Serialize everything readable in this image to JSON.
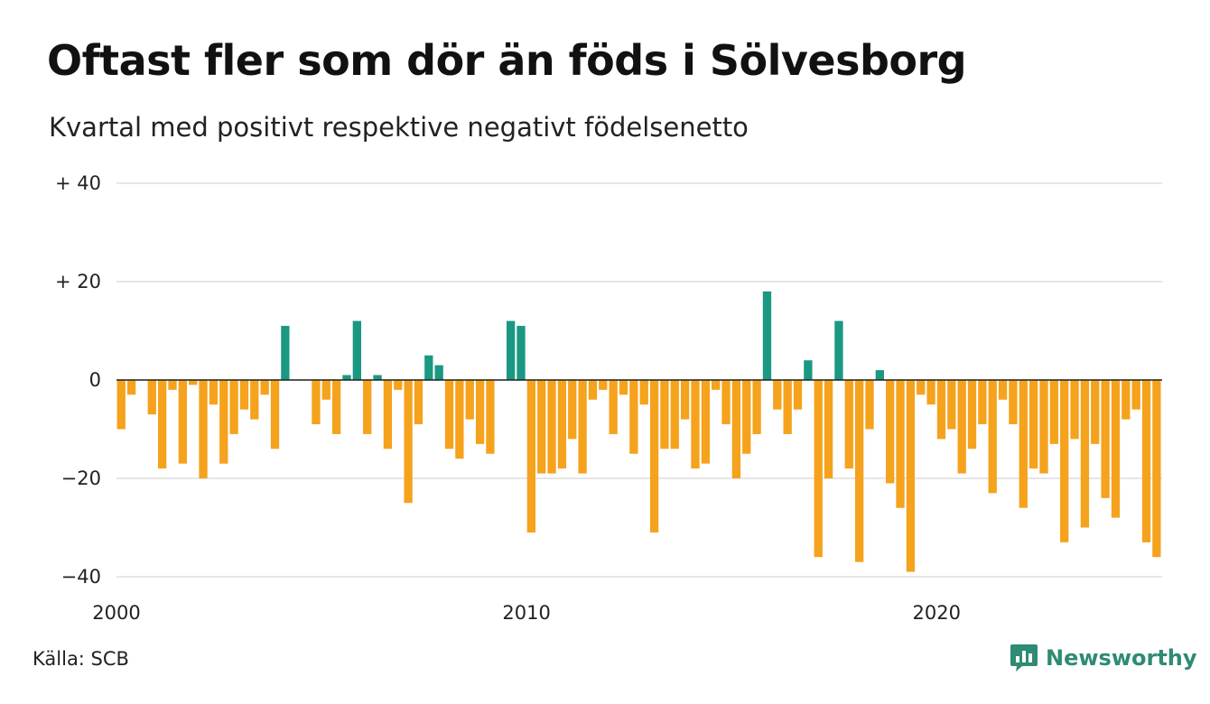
{
  "title": "Oftast fler som dör än föds i Sölvesborg",
  "subtitle": "Kvartal med positivt respektive negativt födelsenetto",
  "source": "Källa: SCB",
  "brand": "Newsworthy",
  "colors": {
    "positive": "#1a9882",
    "negative": "#f5a21d",
    "brand": "#2e8b74"
  },
  "chart_data": {
    "type": "bar",
    "x_start": "2000 Q1",
    "frequency": "quarter",
    "xlim": [
      2000,
      2025.5
    ],
    "ylim": [
      -40,
      40
    ],
    "x_ticks": [
      "2000",
      "2010",
      "2020"
    ],
    "y_ticks": [
      "+ 40",
      "+ 20",
      "0",
      "−20",
      "−40"
    ],
    "values": [
      -10,
      -3,
      0,
      -7,
      -18,
      -2,
      -17,
      -1,
      -20,
      -5,
      -17,
      -11,
      -6,
      -8,
      -3,
      -14,
      11,
      0,
      0,
      -9,
      -4,
      -11,
      1,
      12,
      -11,
      1,
      -14,
      -2,
      -25,
      -9,
      5,
      3,
      -14,
      -16,
      -8,
      -13,
      -15,
      0,
      12,
      11,
      -31,
      -19,
      -19,
      -18,
      -12,
      -19,
      -4,
      -2,
      -11,
      -3,
      -15,
      -5,
      -31,
      -14,
      -14,
      -8,
      -18,
      -17,
      -2,
      -9,
      -20,
      -15,
      -11,
      18,
      -6,
      -11,
      -6,
      4,
      -36,
      -20,
      12,
      -18,
      -37,
      -10,
      2,
      -21,
      -26,
      -39,
      -3,
      -5,
      -12,
      -10,
      -19,
      -14,
      -9,
      -23,
      -4,
      -9,
      -26,
      -18,
      -19,
      -13,
      -33,
      -12,
      -30,
      -13,
      -24,
      -28,
      -8,
      -6,
      -33,
      -36
    ]
  }
}
